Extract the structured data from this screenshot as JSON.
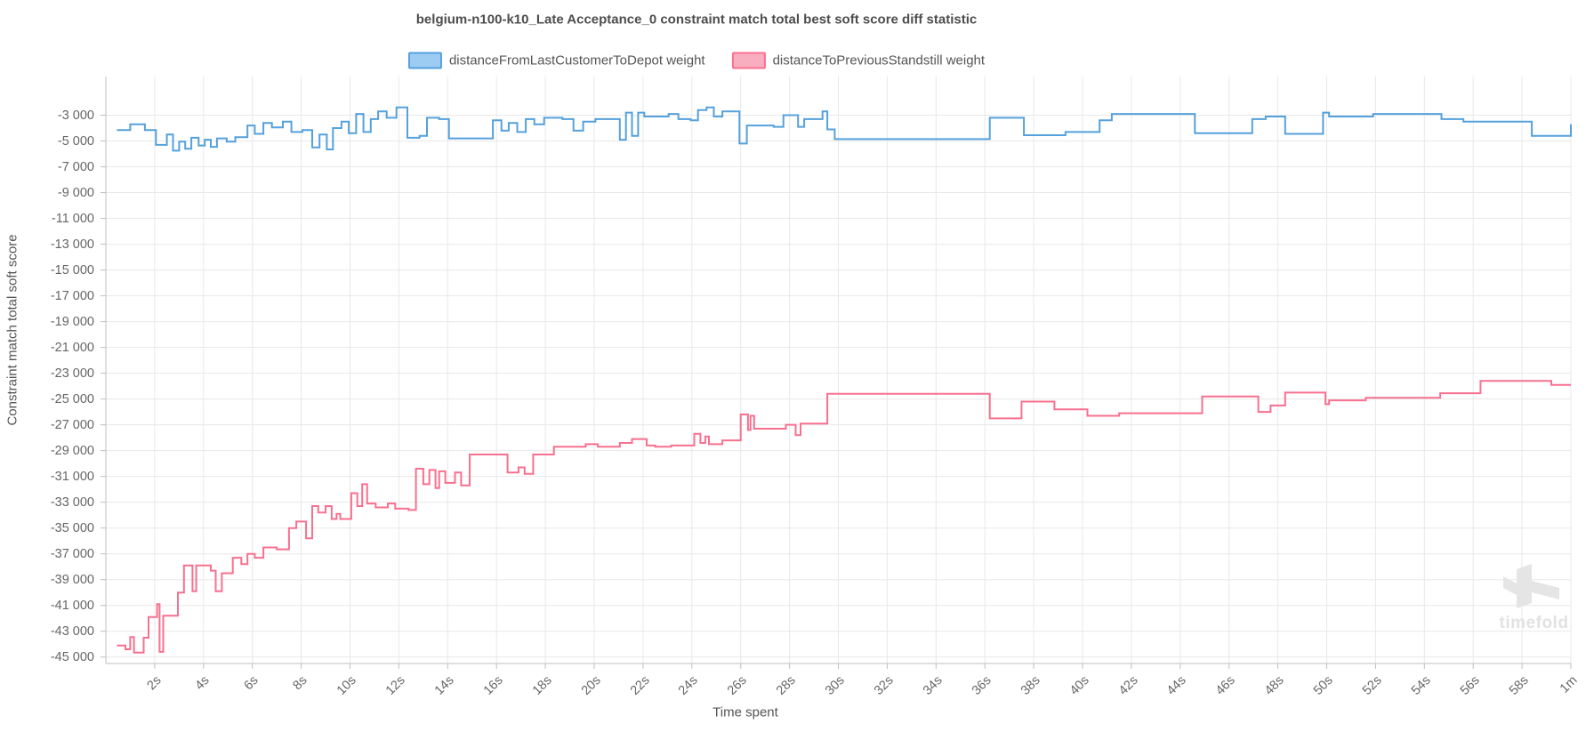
{
  "chart": {
    "title": "belgium-n100-k10_Late Acceptance_0 constraint match total best soft score diff statistic",
    "watermark": "timefold",
    "x_axis": {
      "label": "Time spent",
      "tick_seconds": [
        2,
        4,
        6,
        8,
        10,
        12,
        14,
        16,
        18,
        20,
        22,
        24,
        26,
        28,
        30,
        32,
        34,
        36,
        38,
        40,
        42,
        44,
        46,
        48,
        50,
        52,
        54,
        56,
        58,
        60
      ],
      "tick_labels": [
        "2s",
        "4s",
        "6s",
        "8s",
        "10s",
        "12s",
        "14s",
        "16s",
        "18s",
        "20s",
        "22s",
        "24s",
        "26s",
        "28s",
        "30s",
        "32s",
        "34s",
        "36s",
        "38s",
        "40s",
        "42s",
        "44s",
        "46s",
        "48s",
        "50s",
        "52s",
        "54s",
        "56s",
        "58s",
        "1m"
      ]
    },
    "y_axis": {
      "label": "Constraint match total soft score",
      "tick_values": [
        -3000,
        -5000,
        -7000,
        -9000,
        -11000,
        -13000,
        -15000,
        -17000,
        -19000,
        -21000,
        -23000,
        -25000,
        -27000,
        -29000,
        -31000,
        -33000,
        -35000,
        -37000,
        -39000,
        -41000,
        -43000,
        -45000
      ],
      "tick_labels": [
        "-3 000",
        "-5 000",
        "-7 000",
        "-9 000",
        "-11 000",
        "-13 000",
        "-15 000",
        "-17 000",
        "-19 000",
        "-21 000",
        "-23 000",
        "-25 000",
        "-27 000",
        "-29 000",
        "-31 000",
        "-33 000",
        "-35 000",
        "-37 000",
        "-39 000",
        "-41 000",
        "-43 000",
        "-45 000"
      ]
    }
  },
  "colors": {
    "grid": "#e8e8e8",
    "axis_line": "#bfbfbf",
    "tick_mark": "#bfbfbf",
    "title_text": "#4d4d4d",
    "tick_text": "#666666",
    "watermark": "#e2e2e2"
  },
  "chart_data": {
    "type": "line",
    "step": true,
    "title": "belgium-n100-k10_Late Acceptance_0 constraint match total best soft score diff statistic",
    "xlabel": "Time spent",
    "ylabel": "Constraint match total soft score",
    "x_unit": "seconds",
    "xlim": [
      0,
      60
    ],
    "ylim": [
      -45500,
      0
    ],
    "grid": true,
    "legend_position": "top",
    "series": [
      {
        "name": "distanceFromLastCustomerToDepot weight",
        "color": "#55a1dc",
        "legend_fill": "#9dccf3",
        "points": [
          [
            0.45,
            -4150
          ],
          [
            1.0,
            -3700
          ],
          [
            1.6,
            -4150
          ],
          [
            2.05,
            -5300
          ],
          [
            2.5,
            -4500
          ],
          [
            2.75,
            -5750
          ],
          [
            3.0,
            -5050
          ],
          [
            3.25,
            -5600
          ],
          [
            3.5,
            -4750
          ],
          [
            3.8,
            -5350
          ],
          [
            4.05,
            -4900
          ],
          [
            4.3,
            -5450
          ],
          [
            4.55,
            -4800
          ],
          [
            4.95,
            -5050
          ],
          [
            5.3,
            -4700
          ],
          [
            5.8,
            -3800
          ],
          [
            6.1,
            -4450
          ],
          [
            6.45,
            -3600
          ],
          [
            6.8,
            -3950
          ],
          [
            7.25,
            -3500
          ],
          [
            7.6,
            -4300
          ],
          [
            8.05,
            -4150
          ],
          [
            8.45,
            -5500
          ],
          [
            8.75,
            -4500
          ],
          [
            9.05,
            -5650
          ],
          [
            9.3,
            -4000
          ],
          [
            9.65,
            -3500
          ],
          [
            9.95,
            -4400
          ],
          [
            10.25,
            -2900
          ],
          [
            10.55,
            -4300
          ],
          [
            10.85,
            -3300
          ],
          [
            11.15,
            -2700
          ],
          [
            11.5,
            -3200
          ],
          [
            11.9,
            -2400
          ],
          [
            12.35,
            -4750
          ],
          [
            12.85,
            -4600
          ],
          [
            13.15,
            -3200
          ],
          [
            13.65,
            -3300
          ],
          [
            14.05,
            -4800
          ],
          [
            15.85,
            -3400
          ],
          [
            16.2,
            -4200
          ],
          [
            16.5,
            -3600
          ],
          [
            16.85,
            -4300
          ],
          [
            17.2,
            -3300
          ],
          [
            17.55,
            -3700
          ],
          [
            17.95,
            -3200
          ],
          [
            18.7,
            -3300
          ],
          [
            19.15,
            -4200
          ],
          [
            19.55,
            -3500
          ],
          [
            20.05,
            -3300
          ],
          [
            21.05,
            -4900
          ],
          [
            21.3,
            -2800
          ],
          [
            21.55,
            -4600
          ],
          [
            21.8,
            -2800
          ],
          [
            22.05,
            -3100
          ],
          [
            23.05,
            -2900
          ],
          [
            23.45,
            -3300
          ],
          [
            23.95,
            -3400
          ],
          [
            24.25,
            -2600
          ],
          [
            24.6,
            -2400
          ],
          [
            24.9,
            -3100
          ],
          [
            25.25,
            -2700
          ],
          [
            25.95,
            -5200
          ],
          [
            26.25,
            -3800
          ],
          [
            27.35,
            -3900
          ],
          [
            27.75,
            -3000
          ],
          [
            28.35,
            -3900
          ],
          [
            28.6,
            -3300
          ],
          [
            29.35,
            -2700
          ],
          [
            29.55,
            -4100
          ],
          [
            29.85,
            -4850
          ],
          [
            36.2,
            -3200
          ],
          [
            37.6,
            -4550
          ],
          [
            39.3,
            -4300
          ],
          [
            40.7,
            -3400
          ],
          [
            41.2,
            -2900
          ],
          [
            44.6,
            -4400
          ],
          [
            46.95,
            -3300
          ],
          [
            47.5,
            -3100
          ],
          [
            48.3,
            -4450
          ],
          [
            49.85,
            -2800
          ],
          [
            50.1,
            -3100
          ],
          [
            51.9,
            -2900
          ],
          [
            54.7,
            -3300
          ],
          [
            55.6,
            -3500
          ],
          [
            58.4,
            -4600
          ],
          [
            60.3,
            -3700
          ]
        ]
      },
      {
        "name": "distanceToPreviousStandstill weight",
        "color": "#f8708f",
        "legend_fill": "#f9aec0",
        "points": [
          [
            0.45,
            -44100
          ],
          [
            0.8,
            -44400
          ],
          [
            1.0,
            -43450
          ],
          [
            1.15,
            -44650
          ],
          [
            1.55,
            -43500
          ],
          [
            1.75,
            -41900
          ],
          [
            2.1,
            -40900
          ],
          [
            2.2,
            -44600
          ],
          [
            2.35,
            -41800
          ],
          [
            2.95,
            -40000
          ],
          [
            3.2,
            -37900
          ],
          [
            3.55,
            -39900
          ],
          [
            3.7,
            -37900
          ],
          [
            4.3,
            -38300
          ],
          [
            4.5,
            -39900
          ],
          [
            4.75,
            -38500
          ],
          [
            5.2,
            -37300
          ],
          [
            5.55,
            -37800
          ],
          [
            5.8,
            -37000
          ],
          [
            6.1,
            -37300
          ],
          [
            6.45,
            -36500
          ],
          [
            7.0,
            -36650
          ],
          [
            7.5,
            -35000
          ],
          [
            7.8,
            -34500
          ],
          [
            8.2,
            -35800
          ],
          [
            8.45,
            -33300
          ],
          [
            8.7,
            -33800
          ],
          [
            9.0,
            -33300
          ],
          [
            9.25,
            -34300
          ],
          [
            9.45,
            -33900
          ],
          [
            9.6,
            -34300
          ],
          [
            10.05,
            -32300
          ],
          [
            10.3,
            -33300
          ],
          [
            10.5,
            -31600
          ],
          [
            10.7,
            -33100
          ],
          [
            11.05,
            -33400
          ],
          [
            11.55,
            -33100
          ],
          [
            11.85,
            -33500
          ],
          [
            12.4,
            -33600
          ],
          [
            12.7,
            -30400
          ],
          [
            13.0,
            -31600
          ],
          [
            13.25,
            -30500
          ],
          [
            13.5,
            -31900
          ],
          [
            13.65,
            -30600
          ],
          [
            13.9,
            -31500
          ],
          [
            14.3,
            -30700
          ],
          [
            14.55,
            -31700
          ],
          [
            14.9,
            -29300
          ],
          [
            16.45,
            -30700
          ],
          [
            16.9,
            -30300
          ],
          [
            17.15,
            -30800
          ],
          [
            17.5,
            -29300
          ],
          [
            18.35,
            -28700
          ],
          [
            19.65,
            -28500
          ],
          [
            20.15,
            -28700
          ],
          [
            21.05,
            -28400
          ],
          [
            21.55,
            -28100
          ],
          [
            22.15,
            -28600
          ],
          [
            22.5,
            -28700
          ],
          [
            23.15,
            -28600
          ],
          [
            24.1,
            -27700
          ],
          [
            24.35,
            -28400
          ],
          [
            24.55,
            -27900
          ],
          [
            24.7,
            -28500
          ],
          [
            25.25,
            -28200
          ],
          [
            26.0,
            -26200
          ],
          [
            26.3,
            -27400
          ],
          [
            26.4,
            -26300
          ],
          [
            26.55,
            -27300
          ],
          [
            27.85,
            -27000
          ],
          [
            28.25,
            -27800
          ],
          [
            28.45,
            -26900
          ],
          [
            29.55,
            -24600
          ],
          [
            36.2,
            -26500
          ],
          [
            37.5,
            -25200
          ],
          [
            38.85,
            -25800
          ],
          [
            40.2,
            -26300
          ],
          [
            41.5,
            -26100
          ],
          [
            44.9,
            -24800
          ],
          [
            47.2,
            -26000
          ],
          [
            47.7,
            -25500
          ],
          [
            48.3,
            -24500
          ],
          [
            49.95,
            -25400
          ],
          [
            50.1,
            -25100
          ],
          [
            51.6,
            -24900
          ],
          [
            54.65,
            -24550
          ],
          [
            56.3,
            -23600
          ],
          [
            59.2,
            -23900
          ]
        ]
      }
    ]
  }
}
